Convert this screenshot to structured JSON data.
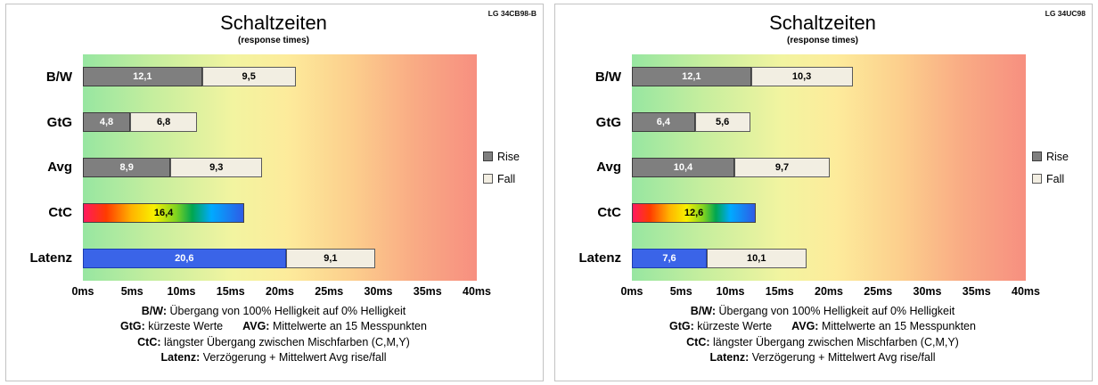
{
  "chart_data": [
    {
      "type": "bar",
      "orientation": "horizontal",
      "title": "Schaltzeiten",
      "subtitle": "(response times)",
      "device": "LG 34CB98-B",
      "categories": [
        "B/W",
        "GtG",
        "Avg",
        "CtC",
        "Latenz"
      ],
      "series": [
        {
          "name": "Rise",
          "values": [
            12.1,
            4.8,
            8.9,
            16.4,
            20.6
          ]
        },
        {
          "name": "Fall",
          "values": [
            9.5,
            6.8,
            9.3,
            null,
            9.1
          ]
        }
      ],
      "rise_styles": [
        "gray",
        "gray",
        "gray",
        "rainbow",
        "blue"
      ],
      "xlim": [
        0,
        40
      ],
      "x_ticks": [
        "0ms",
        "5ms",
        "10ms",
        "15ms",
        "20ms",
        "25ms",
        "30ms",
        "35ms",
        "40ms"
      ],
      "legend": [
        {
          "label": "Rise",
          "style": "gray"
        },
        {
          "label": "Fall",
          "style": "cream"
        }
      ],
      "footnotes": [
        [
          {
            "key": "B/W:",
            "text": " Übergang von 100% Helligkeit auf 0% Helligkeit"
          }
        ],
        [
          {
            "key": "GtG:",
            "text": " kürzeste Werte"
          },
          {
            "key": "AVG:",
            "text": " Mittelwerte an 15 Messpunkten"
          }
        ],
        [
          {
            "key": "CtC:",
            "text": " längster Übergang zwischen Mischfarben (C,M,Y)"
          }
        ],
        [
          {
            "key": "Latenz:",
            "text": " Verzögerung + Mittelwert Avg rise/fall"
          }
        ]
      ]
    },
    {
      "type": "bar",
      "orientation": "horizontal",
      "title": "Schaltzeiten",
      "subtitle": "(response times)",
      "device": "LG 34UC98",
      "categories": [
        "B/W",
        "GtG",
        "Avg",
        "CtC",
        "Latenz"
      ],
      "series": [
        {
          "name": "Rise",
          "values": [
            12.1,
            6.4,
            10.4,
            12.6,
            7.6
          ]
        },
        {
          "name": "Fall",
          "values": [
            10.3,
            5.6,
            9.7,
            null,
            10.1
          ]
        }
      ],
      "rise_styles": [
        "gray",
        "gray",
        "gray",
        "rainbow",
        "blue"
      ],
      "xlim": [
        0,
        40
      ],
      "x_ticks": [
        "0ms",
        "5ms",
        "10ms",
        "15ms",
        "20ms",
        "25ms",
        "30ms",
        "35ms",
        "40ms"
      ],
      "legend": [
        {
          "label": "Rise",
          "style": "gray"
        },
        {
          "label": "Fall",
          "style": "cream"
        }
      ],
      "footnotes": [
        [
          {
            "key": "B/W:",
            "text": " Übergang von 100% Helligkeit auf 0% Helligkeit"
          }
        ],
        [
          {
            "key": "GtG:",
            "text": " kürzeste Werte"
          },
          {
            "key": "AVG:",
            "text": " Mittelwerte an 15 Messpunkten"
          }
        ],
        [
          {
            "key": "CtC:",
            "text": " längster Übergang zwischen Mischfarben (C,M,Y)"
          }
        ],
        [
          {
            "key": "Latenz:",
            "text": " Verzögerung + Mittelwert Avg rise/fall"
          }
        ]
      ]
    }
  ],
  "colors": {
    "rise_gray": "#7f7f7f",
    "fall_cream": "#f2eee2",
    "latenz_blue": "#3a64e8",
    "plot_gradient_left": "#97e6a1",
    "plot_gradient_mid": "#f2f4a0",
    "plot_gradient_right": "#f78f80"
  }
}
